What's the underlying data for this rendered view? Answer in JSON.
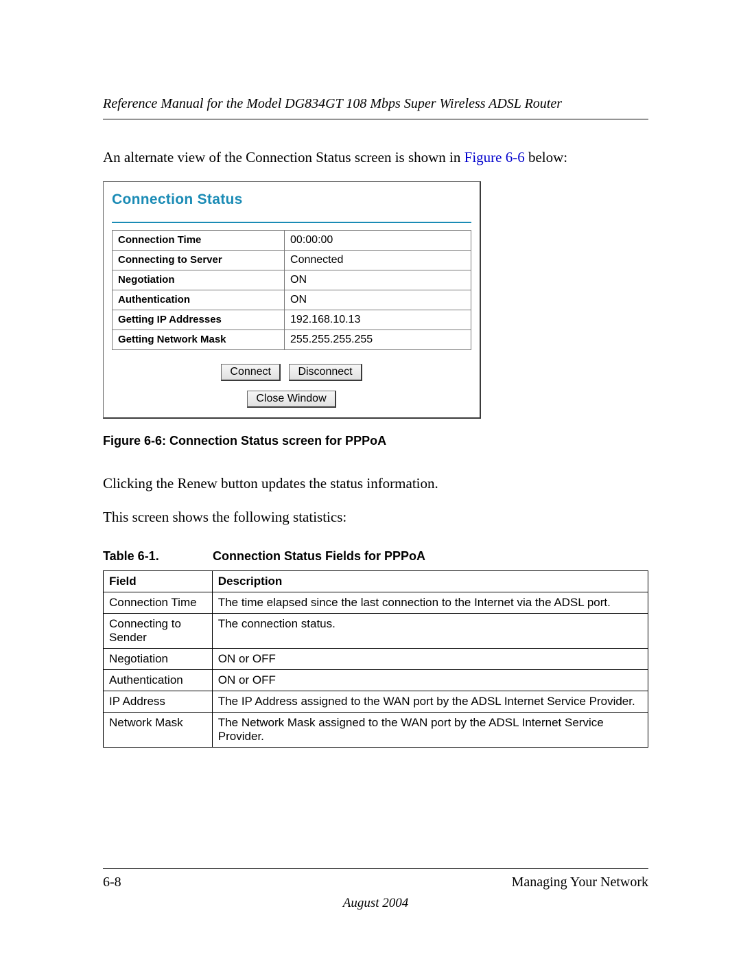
{
  "header": {
    "running_title": "Reference Manual for the Model DG834GT 108 Mbps Super Wireless ADSL Router"
  },
  "intro": {
    "text_before_ref": "An alternate view of the Connection Status screen is shown in ",
    "fig_ref": "Figure 6-6",
    "text_after_ref": " below:"
  },
  "screenshot": {
    "title": "Connection Status",
    "title_color": "#1a8bb5",
    "border_color": "#6a6a6a",
    "rows": [
      {
        "label": "Connection Time",
        "value": "00:00:00"
      },
      {
        "label": "Connecting to Server",
        "value": "Connected"
      },
      {
        "label": "Negotiation",
        "value": "ON"
      },
      {
        "label": "Authentication",
        "value": "ON"
      },
      {
        "label": "Getting IP Addresses",
        "value": "192.168.10.13"
      },
      {
        "label": "Getting Network Mask",
        "value": "255.255.255.255"
      }
    ],
    "buttons": {
      "connect": "Connect",
      "disconnect": "Disconnect",
      "close": "Close Window"
    }
  },
  "figure_caption": "Figure 6-6:  Connection Status screen for PPPoA",
  "para1": "Clicking the Renew button updates the status information.",
  "para2": "This screen shows the following statistics:",
  "table_caption": {
    "num": "Table 6-1.",
    "title": "Connection Status Fields for PPPoA"
  },
  "doc_table": {
    "headers": {
      "field": "Field",
      "description": "Description"
    },
    "rows": [
      {
        "field": "Connection Time",
        "desc": "The time elapsed since the last connection to the Internet via the ADSL port."
      },
      {
        "field": "Connecting to Sender",
        "desc": "The connection status."
      },
      {
        "field": "Negotiation",
        "desc": "ON or OFF"
      },
      {
        "field": "Authentication",
        "desc": "ON or OFF"
      },
      {
        "field": "IP Address",
        "desc": "The IP Address assigned to the WAN port by the ADSL Internet Service Provider."
      },
      {
        "field": "Network Mask",
        "desc": "The Network Mask assigned to the WAN port by the ADSL Internet Service Provider."
      }
    ]
  },
  "footer": {
    "page_number": "6-8",
    "section": "Managing Your Network",
    "date": "August 2004"
  },
  "link_color": "#0000cc"
}
